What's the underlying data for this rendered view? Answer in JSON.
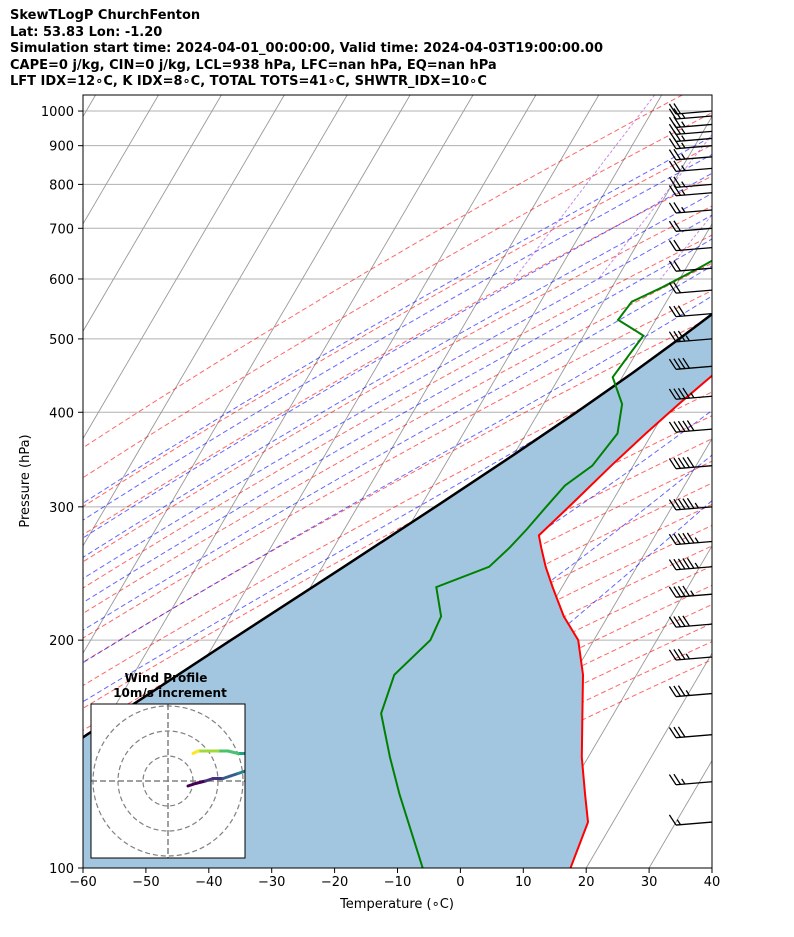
{
  "header": {
    "line1": "SkewTLogP ChurchFenton",
    "line2": "Lat: 53.83   Lon: -1.20",
    "line3": "Simulation start time: 2024-04-01_00:00:00, Valid time: 2024-04-03T19:00:00.00",
    "line4": "CAPE=0 j/kg, CIN=0 j/kg, LCL=938 hPa, LFC=nan hPa, EQ=nan hPa",
    "line5": "LFT IDX=12∘C, K IDX=8∘C, TOTAL TOTS=41∘C, SHWTR_IDX=10∘C"
  },
  "chart_data": {
    "type": "line",
    "xlabel": "Temperature (∘C)",
    "ylabel": "Pressure (hPa)",
    "xlim": [
      -60,
      40
    ],
    "ylim": [
      1050,
      100
    ],
    "y_scale": "log",
    "xticks": [
      -60,
      -50,
      -40,
      -30,
      -20,
      -10,
      0,
      10,
      20,
      30,
      40
    ],
    "xtick_labels": [
      "−60",
      "−50",
      "−40",
      "−30",
      "−20",
      "−10",
      "0",
      "10",
      "20",
      "30",
      "40"
    ],
    "yticks": [
      1000,
      900,
      800,
      700,
      600,
      500,
      400,
      300,
      200,
      100
    ],
    "grid": true,
    "colors": {
      "temperature": "#ff0000",
      "dewpoint": "#008000",
      "parcel": "#000000",
      "shade": "#a3c6e0",
      "dry_adiabat": "#ff0000",
      "moist_adiabat": "#0000ff",
      "mixing_ratio": "#9932cc",
      "isotherm": "#808080"
    },
    "temperature": {
      "p": [
        1000,
        985,
        960,
        930,
        900,
        860,
        820,
        780,
        740,
        700,
        660,
        620,
        585,
        560,
        530,
        505,
        475,
        445,
        410,
        375,
        340,
        305,
        275,
        265,
        250,
        235,
        215,
        200,
        180,
        160,
        140,
        125,
        115,
        100
      ],
      "t": [
        8.0,
        6.0,
        5.5,
        5.3,
        5.3,
        6.0,
        6.5,
        6.2,
        5.0,
        3.5,
        2.5,
        0.8,
        -0.8,
        -1.0,
        -1.2,
        -2.0,
        -4.0,
        -6.0,
        -8.5,
        -11.0,
        -13.5,
        -16.0,
        -18.5,
        -17.0,
        -14.5,
        -11.5,
        -7.0,
        -2.5,
        1.5,
        5.0,
        9.0,
        13.0,
        16.0,
        17.5
      ]
    },
    "dewpoint": {
      "p": [
        1000,
        985,
        960,
        930,
        900,
        860,
        820,
        780,
        740,
        700,
        660,
        620,
        585,
        560,
        530,
        505,
        475,
        445,
        410,
        375,
        340,
        320,
        300,
        280,
        265,
        250,
        235,
        215,
        200,
        180,
        160,
        140,
        125,
        100
      ],
      "td": [
        5.0,
        5.3,
        4.2,
        3.8,
        3.2,
        2.5,
        0.8,
        -2.0,
        -5.0,
        -9.0,
        -14.0,
        -18.0,
        -22.0,
        -25.5,
        -26.0,
        -20.5,
        -21.0,
        -21.5,
        -17.5,
        -15.5,
        -16.5,
        -19.0,
        -20.0,
        -21.0,
        -22.0,
        -23.5,
        -30.0,
        -26.5,
        -26.0,
        -28.5,
        -27.0,
        -21.5,
        -16.5,
        -6.0
      ]
    },
    "parcel": {
      "p": [
        1000,
        965,
        938,
        900,
        850,
        800,
        750,
        700,
        650,
        600,
        550,
        500,
        450,
        400,
        350,
        300,
        250,
        200,
        150,
        100
      ],
      "t": [
        8.5,
        6.5,
        5.2,
        4.0,
        2.5,
        0.9,
        -0.8,
        -2.8,
        -5.0,
        -7.7,
        -10.8,
        -14.5,
        -18.8,
        -24.0,
        -30.2,
        -37.6,
        -46.6,
        -57.7,
        -71.8,
        -90.0
      ]
    },
    "wind_barbs": {
      "p": [
        1000,
        985,
        960,
        940,
        920,
        900,
        870,
        840,
        800,
        780,
        740,
        700,
        660,
        620,
        580,
        540,
        500,
        460,
        420,
        380,
        340,
        300,
        270,
        250,
        230,
        210,
        190,
        170,
        150,
        130,
        115
      ],
      "speed_kt": [
        20,
        25,
        25,
        25,
        25,
        25,
        25,
        25,
        25,
        25,
        25,
        20,
        20,
        20,
        20,
        30,
        35,
        40,
        45,
        50,
        50,
        55,
        55,
        55,
        45,
        40,
        35,
        35,
        30,
        25,
        15
      ],
      "direction_deg": [
        280,
        278,
        276,
        275,
        274,
        272,
        270,
        270,
        268,
        268,
        268,
        266,
        262,
        260,
        262,
        264,
        262,
        260,
        258,
        256,
        254,
        250,
        248,
        248,
        246,
        244,
        242,
        240,
        238,
        235,
        230
      ]
    },
    "inset": {
      "title_line1": "Wind Profile",
      "title_line2": "10m/s increment",
      "rings_ms": [
        10,
        20,
        30
      ],
      "hodograph": {
        "u": [
          8,
          11,
          15,
          18,
          22,
          25,
          28,
          31,
          33,
          32,
          28,
          24,
          20,
          16,
          12,
          10
        ],
        "v": [
          -2,
          -1,
          0,
          1,
          1,
          2,
          3,
          4,
          8,
          11,
          11,
          12,
          12,
          12,
          12,
          11
        ],
        "colors": [
          "#440154",
          "#46327e",
          "#365c8d",
          "#277f8e",
          "#1fa187",
          "#4ac16d",
          "#a0da39",
          "#fde725"
        ]
      }
    }
  }
}
